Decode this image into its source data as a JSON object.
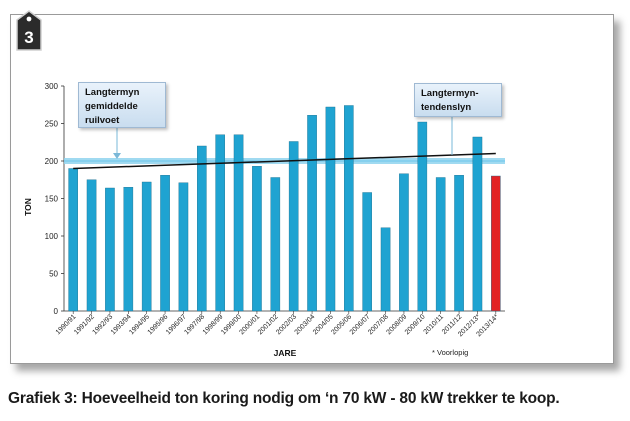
{
  "badge": {
    "number": "3"
  },
  "caption": "Grafiek 3: Hoeveelheid ton koring nodig om ‘n 70 kW - 80 kW trekker te koop.",
  "callouts": {
    "average_line": {
      "lines": [
        "Langtermyn",
        "gemiddelde",
        "ruilvoet"
      ]
    },
    "trend_line": {
      "lines": [
        "Langtermyn-",
        "tendenslyn"
      ]
    }
  },
  "footnote": "* Voorlopig",
  "colors": {
    "bar": "#1fa3d1",
    "bar_provisional": "#e32124",
    "average_band": "#8fd3ef",
    "trend": "#111111",
    "frame_badge": "#2b2b2b"
  },
  "chart_data": {
    "type": "bar",
    "xlabel": "JARE",
    "ylabel": "TON",
    "ylim": [
      0,
      300
    ],
    "yticks": [
      0,
      50,
      100,
      150,
      200,
      250,
      300
    ],
    "categories": [
      "1990/91",
      "1991/92",
      "1992/93",
      "1993/94",
      "1994/95",
      "1995/96",
      "1996/97",
      "1997/98",
      "1998/99",
      "1999/00",
      "2000/01",
      "2001/02",
      "2002/03",
      "2003/04",
      "2004/05",
      "2005/06",
      "2006/07",
      "2007/08",
      "2008/09",
      "2009/10",
      "2010/11",
      "2011/12",
      "2012/13*",
      "2013/14*"
    ],
    "values": [
      190,
      175,
      164,
      165,
      172,
      181,
      171,
      220,
      235,
      235,
      193,
      178,
      226,
      261,
      272,
      274,
      158,
      111,
      183,
      252,
      178,
      181,
      232,
      180
    ],
    "provisional_index": 23,
    "long_term_average": 200,
    "trend_line": {
      "start": 190,
      "end": 210
    },
    "grid": false
  }
}
